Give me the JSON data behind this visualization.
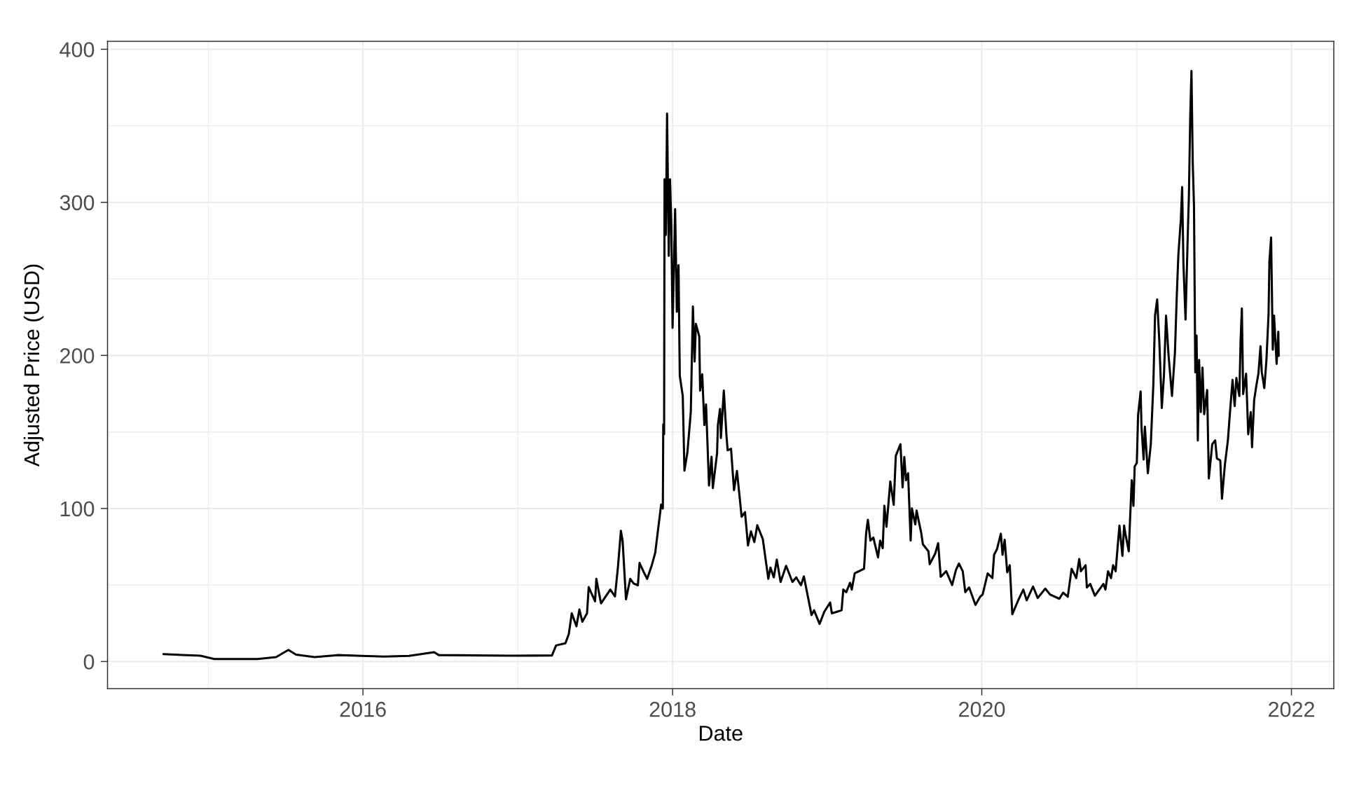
{
  "chart_data": {
    "type": "line",
    "xlabel": "Date",
    "ylabel": "Adjusted Price (USD)",
    "x": [
      "2014-09-17",
      "2014-12-13",
      "2015-01-15",
      "2015-04-27",
      "2015-06-10",
      "2015-07-09",
      "2015-07-27",
      "2015-09-09",
      "2015-11-02",
      "2016-02-20",
      "2016-04-19",
      "2016-06-17",
      "2016-06-28",
      "2016-12-13",
      "2017-03-22",
      "2017-04-01",
      "2017-04-23",
      "2017-05-01",
      "2017-05-08",
      "2017-05-19",
      "2017-05-26",
      "2017-06-02",
      "2017-06-13",
      "2017-06-17",
      "2017-07-02",
      "2017-07-05",
      "2017-07-16",
      "2017-08-07",
      "2017-08-18",
      "2017-08-25",
      "2017-09-01",
      "2017-09-05",
      "2017-09-13",
      "2017-09-23",
      "2017-10-01",
      "2017-10-11",
      "2017-10-15",
      "2017-10-26",
      "2017-11-02",
      "2017-11-13",
      "2017-11-21",
      "2017-11-28",
      "2017-12-05",
      "2017-12-09",
      "2017-12-10",
      "2017-12-12",
      "2017-12-13",
      "2017-12-16",
      "2017-12-19",
      "2017-12-23",
      "2017-12-26",
      "2017-12-29",
      "2018-01-01",
      "2018-01-07",
      "2018-01-11",
      "2018-01-15",
      "2018-01-18",
      "2018-01-25",
      "2018-01-29",
      "2018-02-05",
      "2018-02-13",
      "2018-02-18",
      "2018-02-22",
      "2018-02-25",
      "2018-03-05",
      "2018-03-07",
      "2018-03-12",
      "2018-03-17",
      "2018-03-21",
      "2018-03-28",
      "2018-04-03",
      "2018-04-06",
      "2018-04-16",
      "2018-04-18",
      "2018-04-23",
      "2018-04-25",
      "2018-05-02",
      "2018-05-08",
      "2018-05-11",
      "2018-05-19",
      "2018-05-26",
      "2018-06-02",
      "2018-06-13",
      "2018-06-21",
      "2018-06-28",
      "2018-07-05",
      "2018-07-13",
      "2018-07-20",
      "2018-08-02",
      "2018-08-15",
      "2018-08-20",
      "2018-08-28",
      "2018-09-04",
      "2018-09-13",
      "2018-09-26",
      "2018-10-11",
      "2018-10-20",
      "2018-10-31",
      "2018-11-07",
      "2018-11-16",
      "2018-11-25",
      "2018-12-01",
      "2018-12-14",
      "2018-12-25",
      "2019-01-08",
      "2019-01-12",
      "2019-01-23",
      "2019-02-04",
      "2019-02-08",
      "2019-02-15",
      "2019-02-24",
      "2019-02-28",
      "2019-03-07",
      "2019-03-29",
      "2019-04-03",
      "2019-04-07",
      "2019-04-13",
      "2019-04-20",
      "2019-05-01",
      "2019-05-06",
      "2019-05-12",
      "2019-05-16",
      "2019-05-21",
      "2019-05-30",
      "2019-06-07",
      "2019-06-12",
      "2019-06-23",
      "2019-06-28",
      "2019-07-02",
      "2019-07-06",
      "2019-07-11",
      "2019-07-17",
      "2019-07-20",
      "2019-07-28",
      "2019-07-31",
      "2019-08-11",
      "2019-08-15",
      "2019-08-28",
      "2019-08-31",
      "2019-09-13",
      "2019-09-20",
      "2019-09-26",
      "2019-10-09",
      "2019-10-23",
      "2019-11-01",
      "2019-11-08",
      "2019-11-17",
      "2019-11-23",
      "2019-12-02",
      "2019-12-17",
      "2019-12-28",
      "2020-01-03",
      "2020-01-15",
      "2020-01-26",
      "2020-01-30",
      "2020-02-06",
      "2020-02-15",
      "2020-02-19",
      "2020-02-24",
      "2020-03-01",
      "2020-03-07",
      "2020-03-13",
      "2020-03-27",
      "2020-04-08",
      "2020-04-16",
      "2020-05-01",
      "2020-05-12",
      "2020-05-30",
      "2020-06-10",
      "2020-07-02",
      "2020-07-11",
      "2020-07-22",
      "2020-07-31",
      "2020-08-11",
      "2020-08-18",
      "2020-08-22",
      "2020-09-02",
      "2020-09-05",
      "2020-09-13",
      "2020-09-24",
      "2020-10-14",
      "2020-10-19",
      "2020-10-25",
      "2020-11-01",
      "2020-11-06",
      "2020-11-12",
      "2020-11-17",
      "2020-11-21",
      "2020-11-28",
      "2020-12-02",
      "2020-12-05",
      "2020-12-13",
      "2020-12-16",
      "2020-12-20",
      "2020-12-24",
      "2020-12-27",
      "2021-01-01",
      "2021-01-04",
      "2021-01-10",
      "2021-01-12",
      "2021-01-17",
      "2021-01-20",
      "2021-01-27",
      "2021-02-03",
      "2021-02-05",
      "2021-02-09",
      "2021-02-13",
      "2021-02-18",
      "2021-02-23",
      "2021-03-01",
      "2021-03-06",
      "2021-03-11",
      "2021-03-17",
      "2021-03-25",
      "2021-04-01",
      "2021-04-05",
      "2021-04-09",
      "2021-04-15",
      "2021-04-18",
      "2021-04-21",
      "2021-04-26",
      "2021-05-01",
      "2021-05-04",
      "2021-05-07",
      "2021-05-10",
      "2021-05-13",
      "2021-05-16",
      "2021-05-19",
      "2021-05-22",
      "2021-05-25",
      "2021-05-28",
      "2021-06-01",
      "2021-06-05",
      "2021-06-09",
      "2021-06-16",
      "2021-06-20",
      "2021-06-28",
      "2021-07-05",
      "2021-07-09",
      "2021-07-17",
      "2021-07-21",
      "2021-07-28",
      "2021-08-04",
      "2021-08-09",
      "2021-08-15",
      "2021-08-20",
      "2021-08-24",
      "2021-08-31",
      "2021-09-03",
      "2021-09-06",
      "2021-09-09",
      "2021-09-16",
      "2021-09-21",
      "2021-09-27",
      "2021-09-30",
      "2021-10-05",
      "2021-10-10",
      "2021-10-15",
      "2021-10-20",
      "2021-10-23",
      "2021-10-29",
      "2021-11-03",
      "2021-11-08",
      "2021-11-10",
      "2021-11-14",
      "2021-11-18",
      "2021-11-21",
      "2021-11-27",
      "2021-12-01",
      "2021-12-02"
    ],
    "series": [
      {
        "color": "#000000",
        "values": [
          4.8,
          3.8,
          1.6,
          1.6,
          2.9,
          7.6,
          4.5,
          2.9,
          4.2,
          3.2,
          3.7,
          6.1,
          4.2,
          3.8,
          3.9,
          10.5,
          11.9,
          18,
          31.5,
          23,
          34,
          26,
          31.5,
          48.6,
          39.3,
          54,
          38,
          47,
          42.5,
          61.7,
          85.4,
          78.8,
          40.7,
          54,
          51,
          49.8,
          64.4,
          57.8,
          54,
          63,
          71,
          86.8,
          102.5,
          100,
          155,
          148.5,
          315,
          278.7,
          358,
          265,
          315,
          285,
          218,
          295.6,
          228.6,
          259,
          186.6,
          173.6,
          124.7,
          136.6,
          163,
          232,
          196,
          220.6,
          212.4,
          177,
          187.7,
          154.5,
          168,
          115,
          133.8,
          113.3,
          136,
          154.5,
          165,
          146,
          177,
          148.5,
          138,
          139,
          112,
          124.5,
          94.6,
          97.6,
          75.8,
          85,
          78,
          89,
          80,
          54,
          61.4,
          55,
          66.6,
          52,
          62.5,
          52,
          55,
          49.8,
          55.6,
          43,
          30.4,
          33.5,
          24.6,
          32.4,
          38.6,
          31.5,
          32.4,
          33.5,
          47,
          45.3,
          51.5,
          47,
          57.6,
          60.6,
          84,
          92.6,
          79,
          81,
          68,
          79,
          74,
          101.7,
          88,
          117.7,
          102.4,
          134.4,
          142,
          113.8,
          133.7,
          118.4,
          123,
          79,
          100,
          89.6,
          98.6,
          84,
          76.6,
          72,
          63.6,
          70.5,
          77.3,
          55.3,
          59,
          50,
          59.8,
          64,
          59,
          45.3,
          48.4,
          37,
          42.3,
          43.8,
          57.6,
          54.5,
          69.7,
          73.5,
          83.5,
          69.7,
          79.6,
          58.3,
          62.9,
          30.9,
          40,
          47,
          40,
          49,
          41.5,
          47.6,
          43.8,
          41,
          45,
          42.3,
          60.6,
          54.5,
          67,
          59,
          62.9,
          48.4,
          50.7,
          43,
          50.7,
          47,
          59,
          54.5,
          62.9,
          59,
          75.8,
          88.8,
          69,
          88.8,
          83.5,
          72,
          92.6,
          118.4,
          101.7,
          127.5,
          129.8,
          161,
          176.5,
          153.5,
          132,
          153.5,
          123,
          142,
          155,
          181,
          226,
          236.5,
          210,
          165.6,
          186.6,
          226,
          199.7,
          173.5,
          202,
          236.5,
          265.4,
          289,
          310,
          260,
          223.4,
          276,
          305,
          354.8,
          385.8,
          326,
          297,
          189,
          213,
          144.5,
          197,
          163,
          192,
          161.6,
          177.4,
          119.6,
          142,
          144.5,
          132.7,
          131.4,
          106.4,
          128.8,
          144.5,
          163,
          184,
          166.9,
          185.3,
          173.5,
          210,
          230.7,
          174.8,
          188,
          148.5,
          163,
          140,
          170.8,
          180,
          188,
          206,
          189,
          178.7,
          197,
          227,
          261.5,
          277,
          203.7,
          226,
          194.5,
          215.5,
          199.7
        ]
      }
    ],
    "xlim": [
      "2014-05-08",
      "2022-04-11"
    ],
    "ylim": [
      -17.7,
      405.2
    ],
    "xticks": [
      {
        "value": "2015-01-01",
        "label": null
      },
      {
        "value": "2016-01-01",
        "label": "2016"
      },
      {
        "value": "2017-01-01",
        "label": null
      },
      {
        "value": "2018-01-01",
        "label": "2018"
      },
      {
        "value": "2019-01-01",
        "label": null
      },
      {
        "value": "2020-01-01",
        "label": "2020"
      },
      {
        "value": "2021-01-01",
        "label": null
      },
      {
        "value": "2022-01-01",
        "label": "2022"
      }
    ],
    "yticks": [
      0,
      {
        "value": 50,
        "label": null
      },
      100,
      {
        "value": 150,
        "label": null
      },
      200,
      {
        "value": 250,
        "label": null
      },
      300,
      {
        "value": 350,
        "label": null
      },
      400
    ],
    "grid": true,
    "line_style": "solid"
  }
}
